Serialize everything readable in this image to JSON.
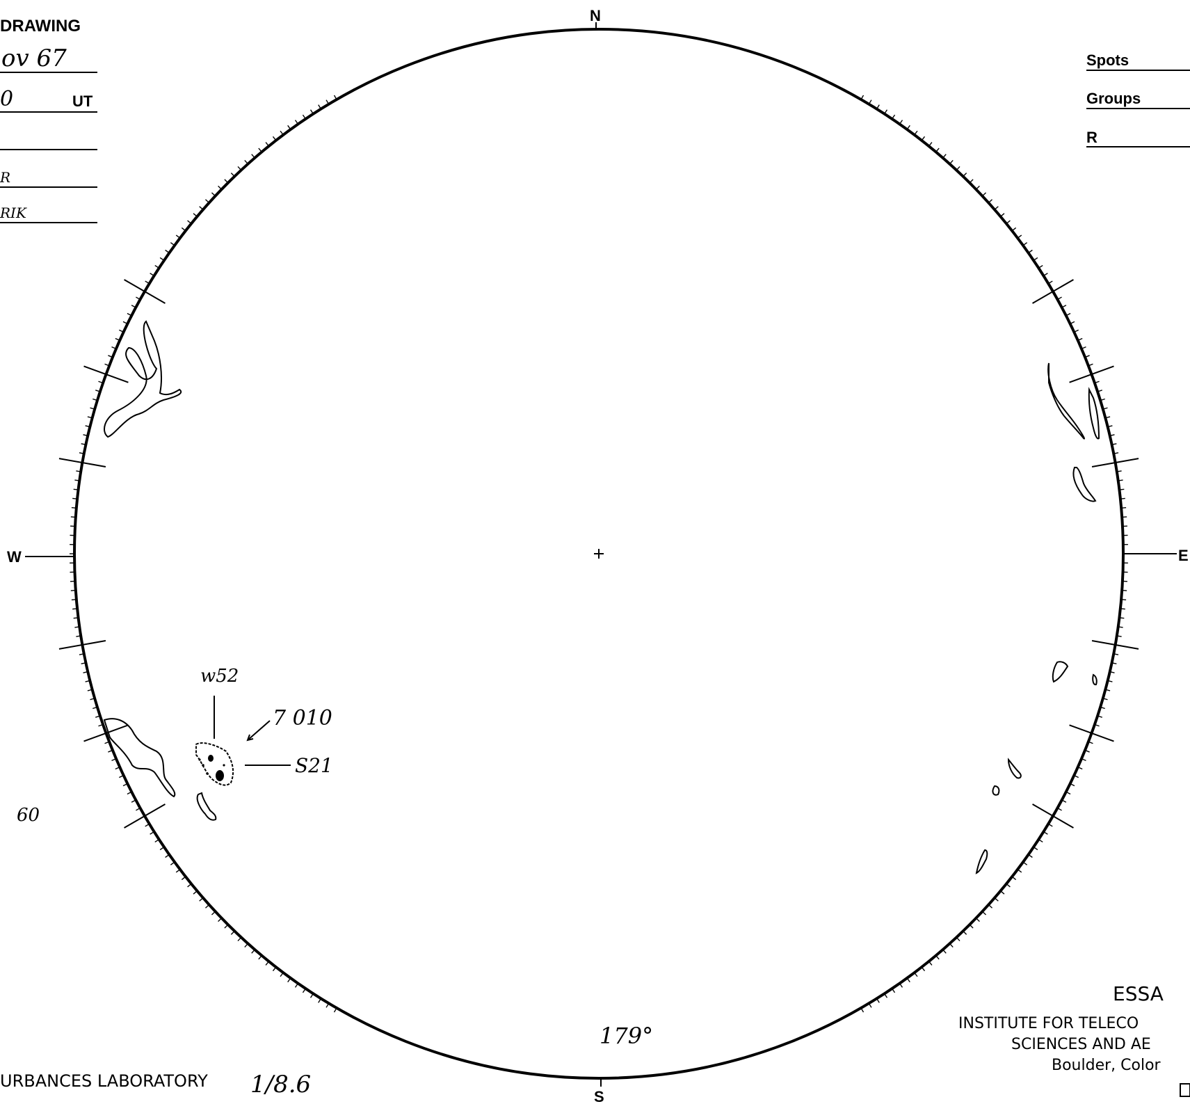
{
  "form": {
    "heading": "DRAWING",
    "date_value": "ov 67",
    "time_value": "0",
    "time_unit": "UT",
    "row3_value": "",
    "row4_value": "R",
    "row5_value": "RIK"
  },
  "counts": {
    "spots_label": "Spots",
    "groups_label": "Groups",
    "r_label": "R"
  },
  "directions": {
    "north": "N",
    "south": "S",
    "east": "E",
    "west": "W"
  },
  "annotations": {
    "region_label": "w52",
    "region_number": "7 010",
    "latitude_label": "S21",
    "margin_note": "60",
    "central_meridian": "179°"
  },
  "footer": {
    "laboratory": "URBANCES LABORATORY",
    "lab_date": "1/8.6",
    "org": "ESSA",
    "line1": "INSTITUTE FOR TELECO",
    "line2": "SCIENCES AND AE",
    "line3": "Boulder, Color"
  }
}
